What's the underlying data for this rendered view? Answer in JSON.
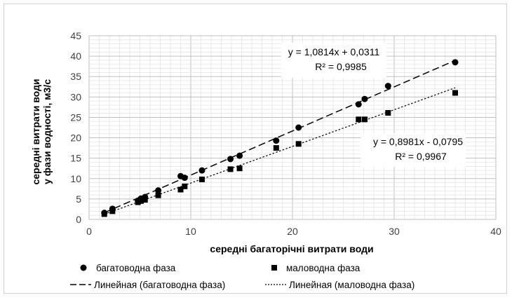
{
  "chart_data": {
    "type": "scatter",
    "xlabel": "середні багаторічні витрати води",
    "ylabel": [
      "середні витрати води",
      "у фази водності, м3/с"
    ],
    "xlim": [
      0,
      40
    ],
    "ylim": [
      0,
      45
    ],
    "xticks": [
      0,
      10,
      20,
      30,
      40
    ],
    "yticks": [
      0,
      5,
      10,
      15,
      20,
      25,
      30,
      35,
      40,
      45
    ],
    "grid": true,
    "legend_position": "bottom",
    "series": [
      {
        "name": "багатоводна фаза",
        "marker": "circle",
        "color": "#000000",
        "points": [
          [
            1.5,
            1.6
          ],
          [
            2.3,
            2.6
          ],
          [
            4.8,
            4.6
          ],
          [
            5.1,
            5.1
          ],
          [
            5.5,
            5.5
          ],
          [
            6.8,
            7.1
          ],
          [
            9.0,
            10.6
          ],
          [
            9.4,
            10.2
          ],
          [
            11.1,
            12.0
          ],
          [
            13.9,
            14.8
          ],
          [
            14.8,
            15.6
          ],
          [
            18.4,
            19.3
          ],
          [
            20.6,
            22.5
          ],
          [
            26.5,
            28.2
          ],
          [
            27.1,
            29.5
          ],
          [
            29.4,
            32.7
          ],
          [
            36.0,
            38.5
          ]
        ]
      },
      {
        "name": "маловодна фаза",
        "marker": "square",
        "color": "#000000",
        "points": [
          [
            1.5,
            1.3
          ],
          [
            2.3,
            2.0
          ],
          [
            4.8,
            4.2
          ],
          [
            5.1,
            4.5
          ],
          [
            5.5,
            4.8
          ],
          [
            6.8,
            5.9
          ],
          [
            9.0,
            7.3
          ],
          [
            9.4,
            8.1
          ],
          [
            11.1,
            9.8
          ],
          [
            13.9,
            12.3
          ],
          [
            14.8,
            12.5
          ],
          [
            18.4,
            17.5
          ],
          [
            20.6,
            18.5
          ],
          [
            26.5,
            24.5
          ],
          [
            27.1,
            24.5
          ],
          [
            29.4,
            26.1
          ],
          [
            36.0,
            31.0
          ]
        ]
      }
    ],
    "trendlines": [
      {
        "name": "Линейная (багатоводна фаза)",
        "slope": 1.0814,
        "intercept": 0.0311,
        "x_range": [
          1.5,
          36.0
        ],
        "dash": "long",
        "equation": "y = 1,0814x + 0,0311",
        "r2": "R² = 0,9985"
      },
      {
        "name": "Линейная (маловодна фаза)",
        "slope": 0.8981,
        "intercept": -0.0795,
        "x_range": [
          1.5,
          36.0
        ],
        "dash": "short",
        "equation": "y = 0,8981x - 0,0795",
        "r2": "R² = 0,9967"
      }
    ]
  }
}
